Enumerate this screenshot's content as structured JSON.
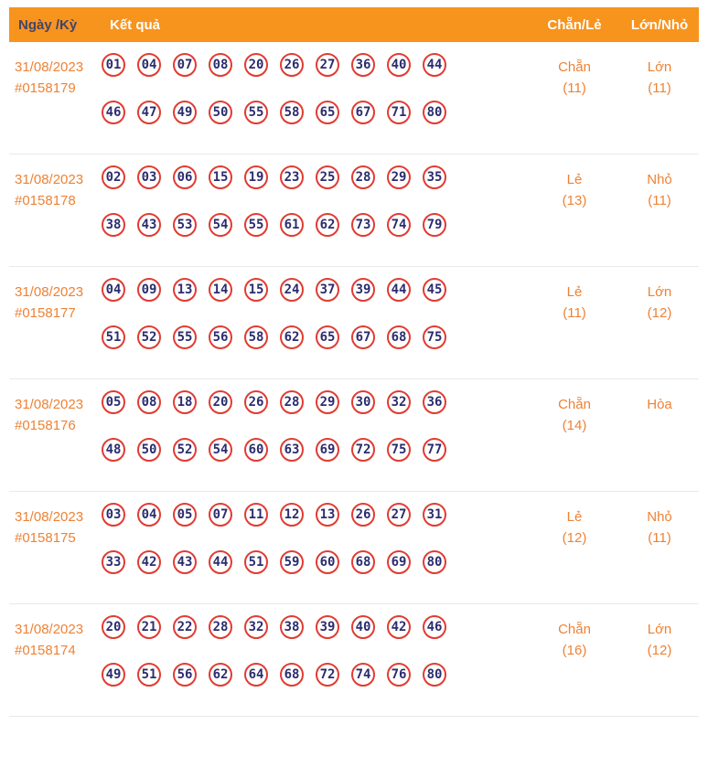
{
  "header": {
    "date_col": "Ngày /Kỳ",
    "result_col": "Kết quả",
    "even_odd_col": "Chẵn/Lẻ",
    "big_small_col": "Lớn/Nhỏ"
  },
  "colors": {
    "header_bg": "#F7941E",
    "accent_orange": "#EE8234",
    "ball_border_red": "#E03C32",
    "number_navy": "#2B2D6E",
    "header_date_text": "#44446A"
  },
  "rows": [
    {
      "date": "31/08/2023",
      "draw_id": "#0158179",
      "numbers_line1": [
        "01",
        "04",
        "07",
        "08",
        "20",
        "26",
        "27",
        "36",
        "40",
        "44"
      ],
      "numbers_line2": [
        "46",
        "47",
        "49",
        "50",
        "55",
        "58",
        "65",
        "67",
        "71",
        "80"
      ],
      "even_odd": "Chẵn",
      "even_odd_count": "(11)",
      "big_small": "Lớn",
      "big_small_count": "(11)"
    },
    {
      "date": "31/08/2023",
      "draw_id": "#0158178",
      "numbers_line1": [
        "02",
        "03",
        "06",
        "15",
        "19",
        "23",
        "25",
        "28",
        "29",
        "35"
      ],
      "numbers_line2": [
        "38",
        "43",
        "53",
        "54",
        "55",
        "61",
        "62",
        "73",
        "74",
        "79"
      ],
      "even_odd": "Lẻ",
      "even_odd_count": "(13)",
      "big_small": "Nhỏ",
      "big_small_count": "(11)"
    },
    {
      "date": "31/08/2023",
      "draw_id": "#0158177",
      "numbers_line1": [
        "04",
        "09",
        "13",
        "14",
        "15",
        "24",
        "37",
        "39",
        "44",
        "45"
      ],
      "numbers_line2": [
        "51",
        "52",
        "55",
        "56",
        "58",
        "62",
        "65",
        "67",
        "68",
        "75"
      ],
      "even_odd": "Lẻ",
      "even_odd_count": "(11)",
      "big_small": "Lớn",
      "big_small_count": "(12)"
    },
    {
      "date": "31/08/2023",
      "draw_id": "#0158176",
      "numbers_line1": [
        "05",
        "08",
        "18",
        "20",
        "26",
        "28",
        "29",
        "30",
        "32",
        "36"
      ],
      "numbers_line2": [
        "48",
        "50",
        "52",
        "54",
        "60",
        "63",
        "69",
        "72",
        "75",
        "77"
      ],
      "even_odd": "Chẵn",
      "even_odd_count": "(14)",
      "big_small": "Hòa",
      "big_small_count": ""
    },
    {
      "date": "31/08/2023",
      "draw_id": "#0158175",
      "numbers_line1": [
        "03",
        "04",
        "05",
        "07",
        "11",
        "12",
        "13",
        "26",
        "27",
        "31"
      ],
      "numbers_line2": [
        "33",
        "42",
        "43",
        "44",
        "51",
        "59",
        "60",
        "68",
        "69",
        "80"
      ],
      "even_odd": "Lẻ",
      "even_odd_count": "(12)",
      "big_small": "Nhỏ",
      "big_small_count": "(11)"
    },
    {
      "date": "31/08/2023",
      "draw_id": "#0158174",
      "numbers_line1": [
        "20",
        "21",
        "22",
        "28",
        "32",
        "38",
        "39",
        "40",
        "42",
        "46"
      ],
      "numbers_line2": [
        "49",
        "51",
        "56",
        "62",
        "64",
        "68",
        "72",
        "74",
        "76",
        "80"
      ],
      "even_odd": "Chẵn",
      "even_odd_count": "(16)",
      "big_small": "Lớn",
      "big_small_count": "(12)"
    }
  ]
}
